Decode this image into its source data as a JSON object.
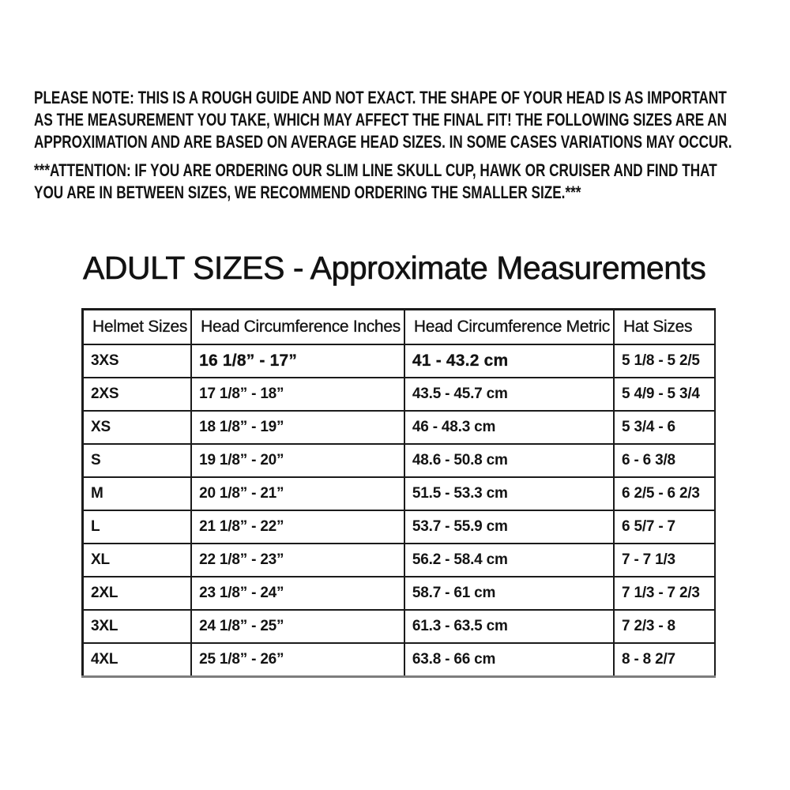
{
  "title": "ADULT SIZES - Approximate Measurements",
  "notices": {
    "note": {
      "lines": [
        "PLEASE NOTE: THIS IS A ROUGH GUIDE AND NOT EXACT. THE SHAPE OF YOUR HEAD IS AS IMPORTANT",
        "AS THE MEASUREMENT YOU TAKE, WHICH MAY AFFECT THE FINAL FIT! THE FOLLOWING SIZES ARE AN",
        "APPROXIMATION AND ARE BASED ON AVERAGE HEAD SIZES. IN SOME CASES VARIATIONS MAY OCCUR."
      ]
    },
    "attention": {
      "lines": [
        "***ATTENTION: IF YOU ARE ORDERING OUR SLIM LINE SKULL CUP, HAWK OR CRUISER AND FIND THAT",
        "YOU ARE IN BETWEEN SIZES, WE RECOMMEND ORDERING THE SMALLER SIZE.***"
      ]
    }
  },
  "table": {
    "columns": [
      "Helmet Sizes",
      "Head Circumference Inches",
      "Head Circumference Metric",
      "Hat Sizes"
    ],
    "rows": [
      [
        "3XS",
        "16 1/8” - 17”",
        "41 - 43.2 cm",
        "5 1/8 - 5 2/5"
      ],
      [
        "2XS",
        "17 1/8” - 18”",
        "43.5 - 45.7 cm",
        "5 4/9 - 5 3/4"
      ],
      [
        "XS",
        "18 1/8” - 19”",
        "46 - 48.3 cm",
        "5 3/4 - 6"
      ],
      [
        "S",
        "19 1/8” - 20”",
        "48.6 - 50.8 cm",
        "6 - 6 3/8"
      ],
      [
        "M",
        "20 1/8” - 21”",
        "51.5 - 53.3 cm",
        "6 2/5 - 6 2/3"
      ],
      [
        "L",
        "21 1/8” - 22”",
        "53.7 - 55.9 cm",
        "6 5/7 - 7"
      ],
      [
        "XL",
        "22 1/8” - 23”",
        "56.2 - 58.4 cm",
        "7 - 7 1/3"
      ],
      [
        "2XL",
        "23 1/8” - 24”",
        "58.7 - 61 cm",
        "7 1/3 - 7 2/3"
      ],
      [
        "3XL",
        "24 1/8” - 25”",
        "61.3 - 63.5 cm",
        "7 2/3 - 8"
      ],
      [
        "4XL",
        "25 1/8” - 26”",
        "63.8 - 66 cm",
        "8 - 8 2/7"
      ]
    ]
  },
  "colors": {
    "background": "#ffffff",
    "text": "#131313",
    "table_border": "#1b1b1b",
    "table_bottom_border": "#7d7d7d"
  }
}
